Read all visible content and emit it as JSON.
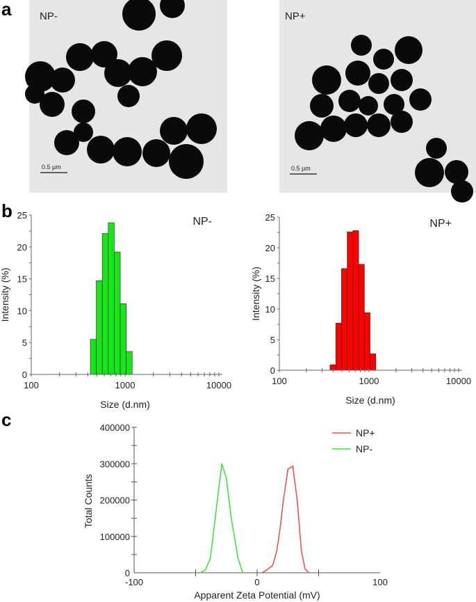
{
  "panel_a": {
    "letter": "a",
    "images": [
      {
        "label": "NP-",
        "scale_bar": "0.5 µm"
      },
      {
        "label": "NP+",
        "scale_bar": "0.5 µm"
      }
    ]
  },
  "panel_b_letter": "b",
  "panel_c_letter": "c",
  "chart_data": [
    {
      "type": "bar",
      "title": "NP-",
      "xlabel": "Size (d.nm)",
      "ylabel": "Intensity (%)",
      "x_scale": "log",
      "xlim": [
        100,
        10000
      ],
      "ylim": [
        0,
        25
      ],
      "x_ticks": [
        "100",
        "1000",
        "10000"
      ],
      "y_ticks": [
        "0",
        "5",
        "10",
        "15",
        "20",
        "25"
      ],
      "color": "#19e619",
      "sizes": [
        459,
        531,
        615,
        712,
        825,
        955,
        1106
      ],
      "values": [
        5.5,
        14.7,
        22.1,
        23.8,
        19.2,
        11.1,
        3.6
      ]
    },
    {
      "type": "bar",
      "title": "NP+",
      "xlabel": "Size (d.nm)",
      "ylabel": "Intensity (%)",
      "x_scale": "log",
      "xlim": [
        100,
        10000
      ],
      "ylim": [
        0,
        25
      ],
      "x_ticks": [
        "100",
        "1000",
        "10000"
      ],
      "y_ticks": [
        "0",
        "5",
        "10",
        "15",
        "20",
        "25"
      ],
      "color": "#ff0000",
      "sizes": [
        396,
        459,
        531,
        615,
        712,
        825,
        955,
        1106
      ],
      "values": [
        0.9,
        7.7,
        16.6,
        22.6,
        22.8,
        17.3,
        9.4,
        2.7
      ]
    },
    {
      "type": "line",
      "xlabel": "Apparent Zeta Potential (mV)",
      "ylabel": "Total Counts",
      "xlim": [
        -100,
        100
      ],
      "ylim": [
        0,
        400000
      ],
      "x_ticks": [
        "-100",
        "0",
        "100"
      ],
      "y_ticks": [
        "0",
        "100000",
        "200000",
        "300000",
        "400000"
      ],
      "legend": "top-right",
      "series": [
        {
          "name": "NP+",
          "color": "#f05050",
          "x": [
            4,
            8,
            12.6,
            16,
            19,
            21,
            25,
            29,
            32.6,
            36,
            39,
            42
          ],
          "y": [
            0,
            8000,
            20000,
            60000,
            130000,
            190000,
            285000,
            293000,
            200000,
            60000,
            10000,
            0
          ]
        },
        {
          "name": "NP-",
          "color": "#40e040",
          "x": [
            -46,
            -42,
            -38,
            -33,
            -28.7,
            -25,
            -21,
            -15.5,
            -11.7
          ],
          "y": [
            0,
            8000,
            40000,
            180000,
            300000,
            260000,
            150000,
            40000,
            0
          ]
        }
      ]
    }
  ]
}
